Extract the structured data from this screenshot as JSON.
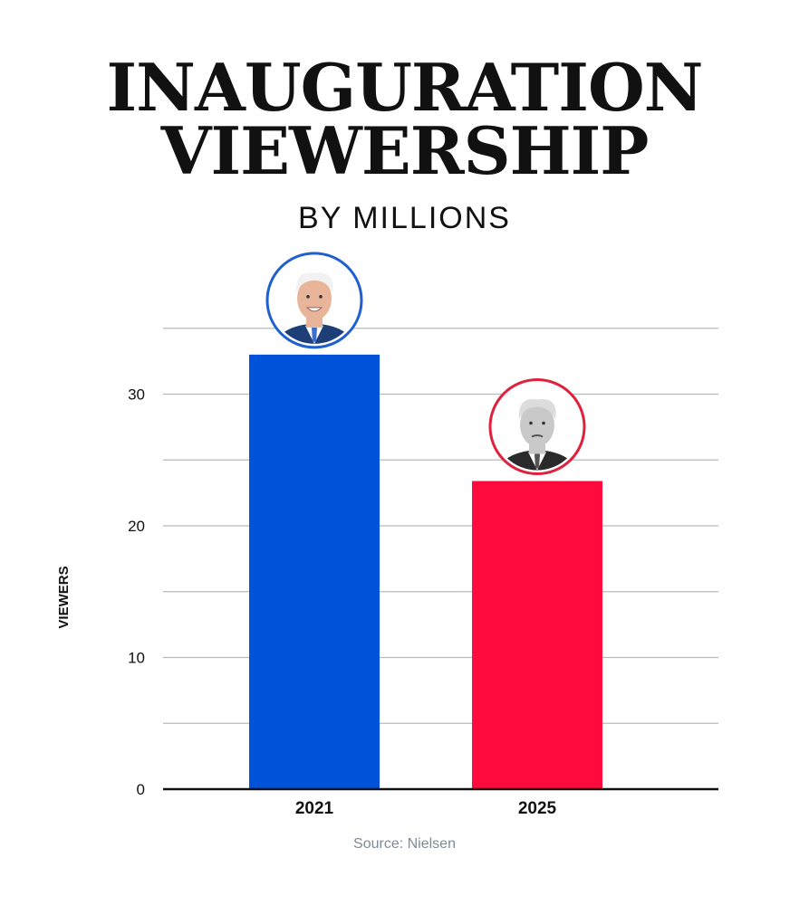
{
  "chart_data": {
    "type": "bar",
    "title_lines": [
      "INAUGURATION",
      "VIEWERSHIP"
    ],
    "subtitle": "BY MILLIONS",
    "categories": [
      "2021",
      "2025"
    ],
    "values": [
      33,
      23.4
    ],
    "ylabel": "VIEWERS",
    "xlabel": "",
    "yticks": [
      "0",
      "10",
      "20",
      "30"
    ],
    "ylim": [
      0,
      35
    ],
    "grid": true,
    "bar_colors": [
      "#0052d9",
      "#ff0a3c"
    ],
    "portraits": [
      {
        "category": "2021",
        "ring_color": "#1f5fd0",
        "icon": "portrait-blue-ring-icon"
      },
      {
        "category": "2025",
        "ring_color": "#e0203c",
        "icon": "portrait-red-ring-icon"
      }
    ],
    "source": "Source: Nielsen"
  }
}
